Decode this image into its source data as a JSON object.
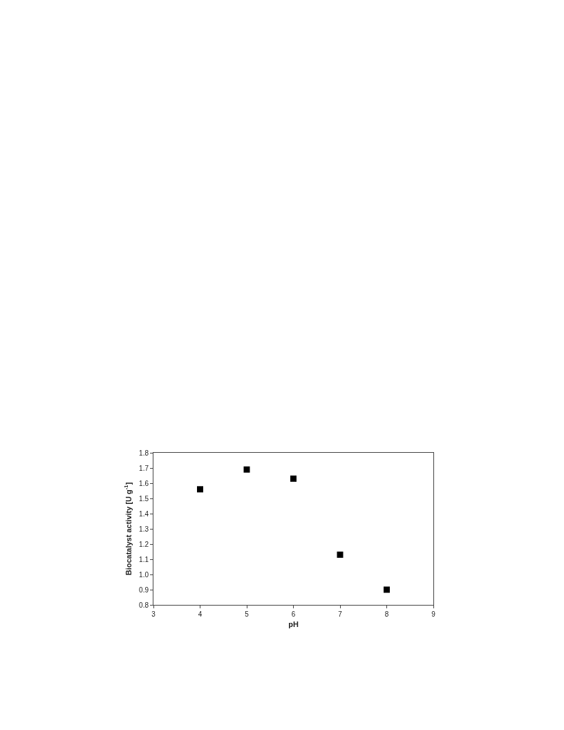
{
  "chart_data": {
    "type": "scatter",
    "xlabel": "pH",
    "ylabel": "Biocatalyst activity [U g$^{-1}$]",
    "x": [
      4,
      5,
      6,
      7,
      8
    ],
    "values": [
      1.56,
      1.69,
      1.63,
      1.13,
      0.9
    ],
    "color": "#000000",
    "marker": "square",
    "grid": false,
    "xlim": [
      3,
      9
    ],
    "xticks": [
      3,
      4,
      5,
      6,
      7,
      8,
      9
    ],
    "ylim": [
      0.8,
      1.8
    ],
    "yticks": [
      0.8,
      0.9,
      {
        "value": 1.0,
        "label": "1.0"
      },
      1.1,
      1.2,
      1.3,
      1.4,
      1.5,
      1.6,
      1.7,
      1.8
    ]
  }
}
